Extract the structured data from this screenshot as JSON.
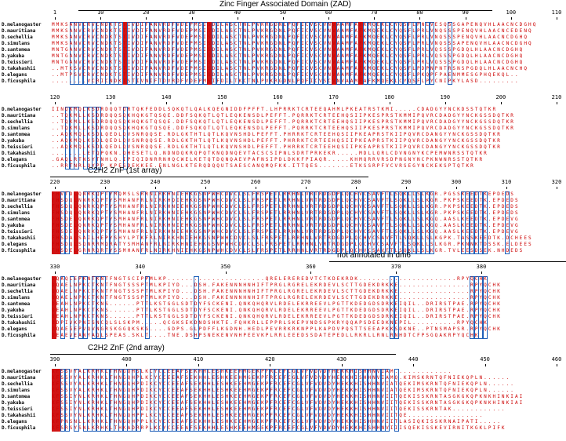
{
  "species": [
    "D.melanogaster",
    "D.mauritiana",
    "D.sechellia",
    "D.simulans",
    "D.santomea",
    "D.yakuba",
    "D.teissieri",
    "D.takahashii",
    "D.elegans",
    "D.ficusphila"
  ],
  "blocks": [
    {
      "feature": "Zinc Finger Associated Domain (ZAD)",
      "ticks": [
        "1",
        "10",
        "20",
        "30",
        "40",
        "50",
        "60",
        "70",
        "80",
        "90",
        "100",
        "110"
      ],
      "sequences": [
        "MMKSANVCRVCNDKTSTIVDIFANVRDFVDEPMSISDILASCTNLPVKRGDNLPQFICVSCVNVAAMFAFKMQEKLCYQSFLPNLVESQSSGAPENQVHLAACNCDGHQ",
        "MMKSANVCRVCNDKTSTIVDIFANVRDFVDEPMSISDILASCTNLPVKRGDNLPQFICVSCVNVAAMFAFKMQEKLCYQSFLPRLVNQSSSPENQVHLAACNCEDENQ",
        "MMKSANVCRVCNDKTSTIVDIFANVRDFVDEPMSISDILASCTNLPVKRGDNLPQFICVSCVNVAAMFAFKMQEKLCYQSFLPRLVNQSSSPENQVHLAACNCDGHQ",
        "MMKSANVCRVCNDKTSTIVDIFANVRDFVDEPMSISDILASCTNLPVKRGDNLPQFICVSCVNVAAMFAFKMQEKLCYQSFLPRLVNQSSSAPENQVHLAACNCDGHQ",
        "MNTGANVCRVCNDKTSTIVDIFANVRDFVDEPMSISDILASCTNLPVKRGDNLPQFICVSCVNVAAMFAFKMQEKLCYQSFLPRLVQSSSPGDQLHLAACNCDGHQ",
        "MNTGANVCRVCNDKTSTIVDIFANVRDFVDEPMSISDILASCTNLPVKRGDNLPQFICVSCVNVAAMFAFKMQEKLCYQSFLPRLVQSSSPGDQLHLAACNCDGHQ",
        "MNTGANVCRVCNDKTSTIVDIFANVRDFVDEPMSISDILASCTNLPVKRGDNLPQFICVSCVNVAAMFAFKMQEKLCYQSFLPRLVQSSSPGDQLHLAACNCDGHQ",
        "..MTKSVCRVCNDKTSTIVDIFANVRDFVDEPMSISDILASCTNLPVKRGDNLPQFICVSCVNVAAMFAFKMQEKLCYQSFLPDPNPNTRSNSPGDQLHLAACNCHQ",
        "..MTPSVCRVCNDKTSTIVDIFANVRDFVDEPMSISDILASCTNLPVKRGDNLPQFICVSCVNVAAMFAFKMQEKLCYQSFLPKQPFPAENMMESGPHQEKQL..",
        "........VCRICNDKTSTIVNIFTDVRDFVDEPMSIFDILTKCTNLPVKRGDNLPQFICVSCVNVAAMFAFKMQEKLCYQSFLPYCNIPKYLASD........."
      ]
    },
    {
      "feature": "",
      "ticks": [
        "120",
        "130",
        "140",
        "150",
        "160",
        "170",
        "180",
        "190",
        "200",
        "210"
      ],
      "sequences": [
        "IINQKMQLKSDRDQQTQRTQKFEDDLSQKQTLQALKQEGNIDDFPFFT.LHPRRKTCRTEEQAHMLPKEATRSTKMI.....CDADGYYNCKDSSTQTKR",
        "..TQKMLLKSDRDQQSQKHQKGTQSQE.DDFSQKQTLQTLEQKENSDLPEFFT.PQRRKTCRTEEHQSIIPKESPRSTKMMIPQVRCDADGYYNCKGSSDQTKR",
        "..TQKMLLKSDRDQQSQKHQKGTQSQE.DDFSQKQTLQTLEQKENSDLPEFFT.PQRRKTCRTEEHQSIIPKESPRSTKMMIPQVRCDADGYYNCKGSSDQTKR",
        "..TQKMLLKSDRDQQSQKHQKGTQSQE.DDFSQKQTLQTLEQKENSDLPEFFT.PQRRKTCRTEEHQSIIPKESPRSTKMMIPQVRCDADGYYNCKGSSDQTKR",
        "..AQKMQLKSDLQEDLQVSNRQQSE.RDLGKTHTLQTLKQVNSHDLPEFFT.PHRRKTCRTEEHQSIIPKEAPRSTKIIPQVRCDANGYYNCKGSSDQTKR",
        "..AQKMQLKSDLQEDLQVSNRQQSE.RDLGKTHTLQTLKQVNSHDLPEFFT.PHRRKTCRTEEHQSIIPKEAPRSTKIIPQVRCDANGYYNCKGSSDQTKR",
        "..AQKMQLKSDLQEDLQVSNRQQSE.RDLGKTHTLQTLKQVNSHDLPEFFT.PHRRKTCRTEEHQSIIPKEAPRSTKIIPQVRCDANGYYNCKGSSDQTKR",
        ".......LETQPQKN.QHESETLQ.NDNDQKRQPQTKNQDNQEVTACSCSIPNLSDRTPRKEKR.....MDLLQRLCDVNGNYKCPEMWNRSSTQTKR",
        ".GAQLRTNSYTNHLQ.IPIQIDNRRNHQCWELKETQTDQNQAEVPAFNSIPDLDKKFPIAQR.....KHMQRRVRSDPNGNYNCPKNWNRSSTQTKR",
        "..RRTNRLQYPP.KPESDEKKEE.ENLNGLKTERQDQQUTSAESCANQMQFKK.ITTQES.......ETKSSRPFVCVRSEGYNCKEKSPTQTKR"
      ]
    },
    {
      "feature": "C2H2 ZnF (1st array)",
      "ticks": [
        "220",
        "230",
        "240",
        "250",
        "260",
        "270",
        "280",
        "290",
        "300",
        "310",
        "320"
      ],
      "sequences": [
        "FHVTDLQNRKQPTYMQMSLSRRNIRKHNIEHKGSNPWHCDVCLSLFRSPETLRRHNLVRTRDGDPLQCHVCSAVFTLSQKLLSLKGR.PGSSKEEDTKEPDEDS",
        "FHSDQLNNRKQPTYSMHANFRLNIRKHQIEHKGSNPWHCDVCLSLFRSPETLRRHNLVRTRDGDPLQCHVCSAVFTLSQKLLSLKGR.PKPSKEEDTK.EPDEDS",
        "FHSDQLQNRKQPTYSMHANFRLNIRKHNIEHKGSNPWHCDVCLSLFRSPETLRRHNLVRTRDGDPLQCHVCSAVFTLSQKLLSLKGR.PKPSKEEDTK.EPDEDS",
        "FHSDQLQNRKQPTYSMHANFRLNIRKHNIEHKGSNPWHCDVCLSLFRSPETLRRHNLVRTRDGDPLQCHVCSAVFTLSQKLLSLKGR.PKPSKEEDTK.EPDEDS",
        "FHSDELQNRKQPTYSMHANFRLNIRKHNIEHKGSNPWHCDVCLSLFRSPETLRRHNLVRTRDGDPLQCHVCSAVFTLSQKLLSLKGQ.AASLKEEDTK.EPDEVG",
        "FHSDELQNRKQPTYSMHANFRLNIRKHNIEHKGSNPWHCDVCLSLFRSPETLRRHNLVRTRDGDPLQCHVCSAVFTLSQKLLSLKGQ.AASLKEEDTK.EPDEVG",
        "FHSDELQNRKQPTYSMHANFRLNIRKHNIEHKGSNPWHCDVCLSLFRSPETLRRHNLVRTRDGDPLQCHVCSAVFTLSQKLLSLKGQ.AASLKEEDTK.EPDEVG",
        "FHSDALSAILHEPYSHYLPTKFRLNIRKHNIEHKGSNPWHCDVCLSLFRSPETLRRHNLVRTRDGDPLQCHVCSAVFTLSQKLLSLKGPK.TASSKEEDTK.DCHEES",
        "FHSDQLSQNRRMQRATYSMHANFRLNIRKHNIEHKGSNPWHCDVCLSLFRSPETLRRHNLVRTRDGDPLQCHVCSAVFTLSQKLLSLKGR.PKNNKTDSSK.ELDEES",
        "FHSDELGRNRQRTYSSMHANFRLNIRKHNIEHKGSNPWHCDVCLSLFRSPETLRRHNLVRTRDGDPLQCHVCSAVFTLSQKLLSLKGR.TVLEESDSEK.NHDEDS"
      ]
    },
    {
      "feature": "not annotated in dm6",
      "ticks": [
        "330",
        "340",
        "350",
        "360",
        "370",
        "380"
      ],
      "sequences": [
        "DQAQLEPKNTKNTFNGTSCIPPMLKP......................QRELEREREDVTCTKDEKRDK......................RPYQCHK",
        "DQAELNPKCTKNTFNGTSSSPTMLKPIYD...DSH.FAKENNNHNHIFTPRGLRGRELEKRDEVLSCTTGDEKDRKKE................RPYQCHK",
        "DQAELNPKCTKNTFNGTSSSPTMLKPIYD...DSH.FAKENNNHNHIFTPRGLRGRELEKRDEVLSCTTGDEKDRKKE................RPYQCHK",
        "DQAELNPKCTKNTFNGTSSSPTMLKPIYD...DSH.FAKENNNHNHIFTPRGLRGRELEKRDEVLSCTTGDEKDRKKE................RPYQCHK",
        "DEAHLNPKCTKNS......PTTLKSTGGLSDTDYFSCKENI.QNKQHQRVLRDELEKRREEVLPGTTKDEDGDSDRKEIQIL..DRIRSTPAE.RPYQCHK",
        "DEAHLNPKCTKNS......PTTLKSTGGLSDTDYFSCKENI.QNKQHQRVLRDELEKRREEVLPGTTKDEDGDSDRKEIQIL..DRIRSTPAE.RPYQCHK",
        "DEAHLNPKCTKNS......PTTLKSTGGLSDTDYFSCKENI.QNKQHQRVLRDELEKRREEVLPGTTKDEDGDSDRKEIQIL..DRIRSTPAE.RPYQCHK",
        "DDPIVKPNISNCQLSLSKPM.....QCGKSEKDNDSHKTE.FQHKRLLEPPRLSKEPVNDSGPKRYQQAPSDEEDKNEPIL..........RPYQCHK",
        "DQAEGEPVQVNGRSKGGQKSKG....GDPS.GLPDFFLKGDNH.HEDLPEVRRKRKNPPLKAPDVPQSTTSEEAPKKSDKNE..PTNSMAPSR.RPYQCHK",
        "DEAEVEANYAQLSPEAS.SKLT....TNE.DSHPSNEKENVNHPEEVKPLRRLEEEDSSDATEPEDLLRKRLLRNLRNHDTCFPSGQAKRPYQCHK"
      ]
    },
    {
      "feature": "C2H2 ZnF (2nd array)",
      "ticks": [
        "390",
        "400",
        "410",
        "420",
        "430",
        "440",
        "450",
        "460"
      ],
      "sequences": [
        "KFSSVYALKRHKLTHNGQHSLKCYCCEEAFSEKHHLESHKEEHMGEKPFRCEFCGLVFVDVDYHEKKHISHHNVIAM.............",
        "KFSSVYALKRHKLTHNGQHPLKCYCCEEAFSEKHHLESHKEEHMGEKPFRCEFCGLVFVDVDYHEKKHISHHNVIAMQ.KIMSKRNTQFNIEKQPLN......",
        "KFSSVYALKRHKLTHNGQHPDIKCYCCEEAFSEKHHLESHKEEHMGEKPFRCEFCGLVFVDVDYHEKKHISHHNVIATQEKIMSKRNTQFNIEKQPLN......",
        "KFSSVYALKRHKLTHNGQHPDIKCYCCEEAFSEKHHLESHKEEHMGEKPFRCEFCGLVFVDVDYHEKKHISHHNVIATQEKIMSKRNTQFNIEKQPLN......",
        "KFSSIYNLKRHKLTHNGQHPDIKCYCCEEAFSEKHHLESHKEEHMGEKPFRCEFCGLVFVDVDYHEKKHISHHNVIITQEKISSKRNTASGKGKQPKNKHINKIAI",
        "KFSSIYNLKRHKLTHNGQHPDIKCYCCEEAFSEKHHLESHKEEHMGEKPFRCEFCGLVFVDVDYHEKKHISHHNVIITQEKISSKRNTASGKGKQPKNKHINKIAI",
        "KFSSIYNLKRHKLTHNGQHPDIKCYCCEEAFSEKHHLESHKEEHMGEKPFRCEFCGLVFVDVDYHEKKHISHHNVIITQEKISSKRNTAK............",
        "KFSSVYNLKRHKLTHNGQHPPLKCYCCEEAFSEKHHLESHKEEHMGEKPFRCEFCGLVFVDVDYHEKKHISHHNVIITQE.................",
        "KFPNSNLLKRHKLTHNGQHPPLKCYCCEEAFSEKHHLESHKEEHMGEKPFRCEFCGLVFVDVDYHEKKHISHHNVIITLASIQKISSKRNAIPATI.....",
        "KFSRSYSNLKRHKLTHKADRRPLKCYCCEEAFSEKHHLESHKEEHMGEKPFRCEFCGLVFVDVDYHEKKHISHHNVIIISQEKISSKEVIRNITKGKLPIFK"
      ]
    }
  ]
}
